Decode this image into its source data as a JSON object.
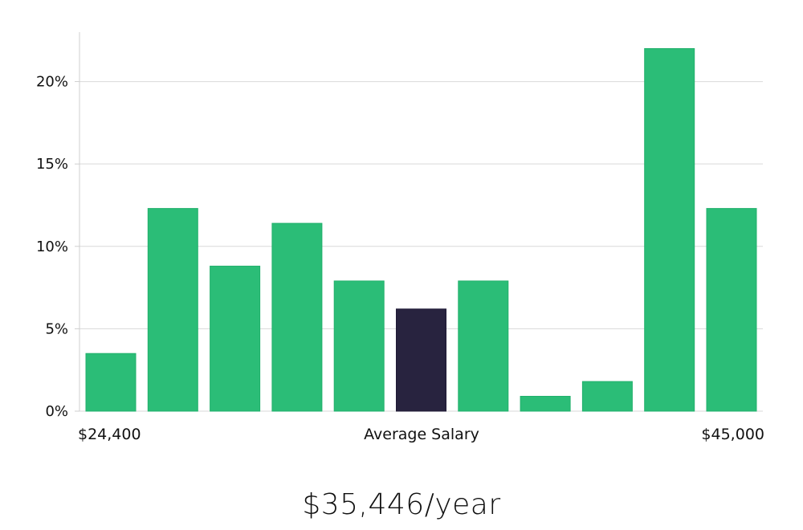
{
  "summary": "$35,446/year",
  "colors": {
    "bar": "#2bbd77",
    "highlight": "#28233f",
    "grid": "#d9d9d9",
    "axis": "#cfcfcf"
  },
  "chart_data": {
    "type": "bar",
    "title": "",
    "xlabel": "Average Salary",
    "x_min_label": "$24,400",
    "x_max_label": "$45,000",
    "ylabel": "",
    "ylim": [
      0,
      23
    ],
    "y_ticks": [
      0,
      5,
      10,
      15,
      20
    ],
    "y_tick_labels": [
      "0%",
      "5%",
      "10%",
      "15%",
      "20%"
    ],
    "grid": true,
    "highlight_index": 5,
    "values": [
      3.5,
      12.3,
      8.8,
      11.4,
      7.9,
      6.2,
      7.9,
      0.9,
      1.8,
      22.0,
      12.3
    ]
  }
}
